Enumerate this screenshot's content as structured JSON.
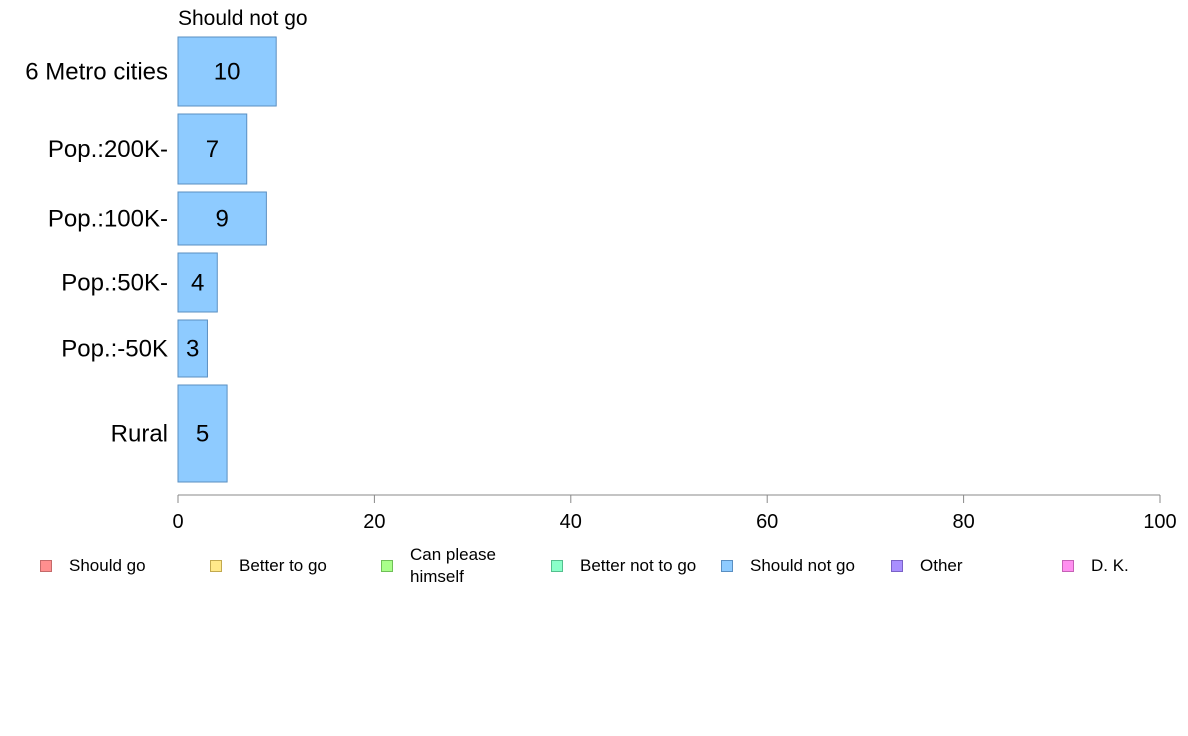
{
  "chart_data": {
    "type": "bar",
    "orientation": "horizontal",
    "panel_title": "Should not go",
    "categories": [
      "6 Metro cities",
      "Pop.:200K-",
      "Pop.:100K-",
      "Pop.:50K-",
      "Pop.:-50K",
      "Rural"
    ],
    "series": [
      {
        "name": "Should not go",
        "values": [
          10,
          7,
          9,
          4,
          3,
          5
        ],
        "color": "#8ecbff",
        "edge": "#5a8fc2"
      }
    ],
    "xlim": [
      0,
      100
    ],
    "xticks": [
      "0",
      "20",
      "40",
      "60",
      "80",
      "100"
    ],
    "grid": false,
    "legend_position": "bottom",
    "legend": [
      {
        "label": "Should go",
        "color": "#ff8f8f",
        "edge": "#c46a6a"
      },
      {
        "label": "Better to go",
        "color": "#ffe98a",
        "edge": "#c2a94f"
      },
      {
        "label": "Can please himself",
        "color": "#a9ff8a",
        "edge": "#6fbf57"
      },
      {
        "label": "Better not to go",
        "color": "#8affc9",
        "edge": "#54bf8e"
      },
      {
        "label": "Should not go",
        "color": "#8ecbff",
        "edge": "#5a8fc2"
      },
      {
        "label": "Other",
        "color": "#a98fff",
        "edge": "#7a62c7"
      },
      {
        "label": "D. K.",
        "color": "#ff8ff0",
        "edge": "#c562b6"
      }
    ]
  }
}
